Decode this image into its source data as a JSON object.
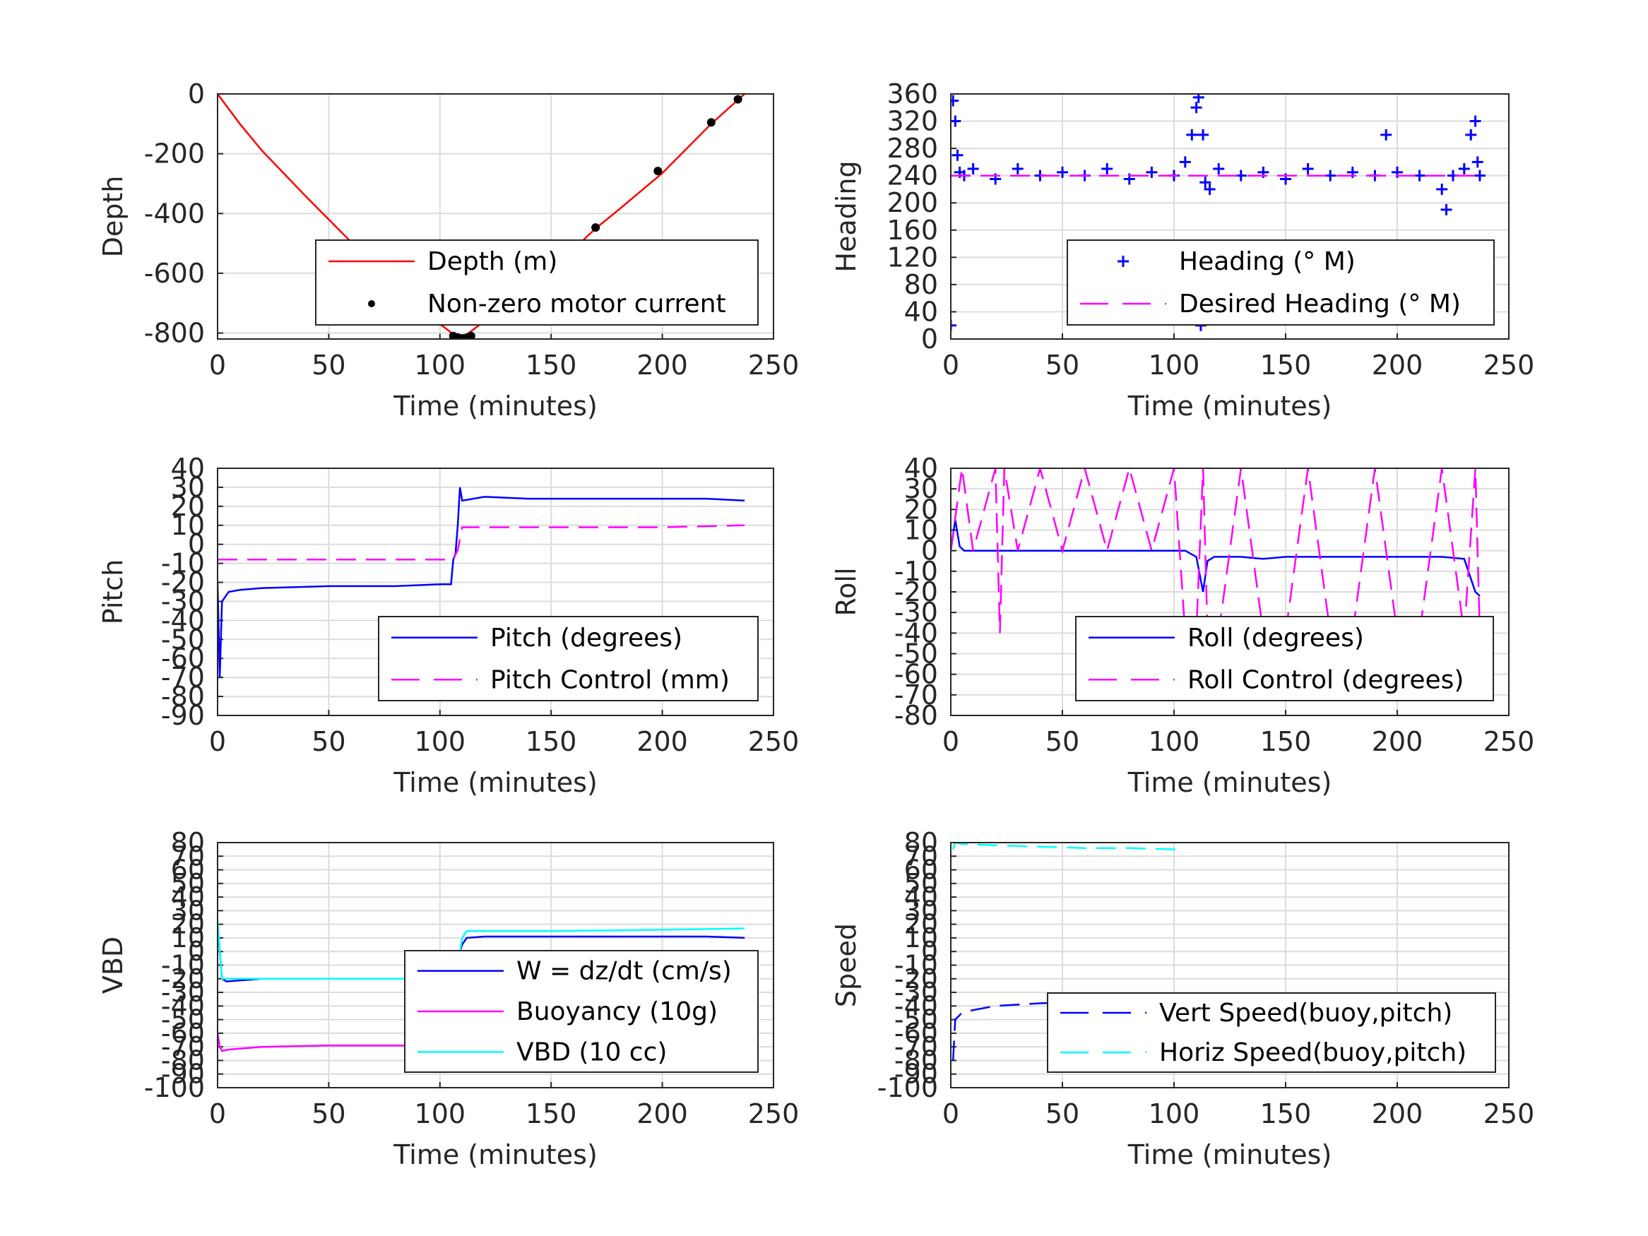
{
  "chart_data": [
    {
      "id": "depth",
      "type": "line",
      "xlabel": "Time (minutes)",
      "ylabel": "Depth",
      "xlim": [
        0,
        250
      ],
      "ylim": [
        -820,
        0
      ],
      "xticks": [
        "0",
        "50",
        "100",
        "150",
        "200",
        "250"
      ],
      "yticks": [
        "0",
        "-200",
        "-400",
        "-600",
        "-800"
      ],
      "ytick_values": [
        0,
        -200,
        -400,
        -600,
        -800
      ],
      "grid": true,
      "legend_position": "bottom-right",
      "series": [
        {
          "name": "Depth (m)",
          "style": "line",
          "color": "#ff0000",
          "x": [
            0,
            10,
            20,
            40,
            60,
            80,
            100,
            108,
            112,
            120,
            140,
            160,
            170,
            180,
            200,
            222,
            234,
            237
          ],
          "y": [
            0,
            -100,
            -190,
            -345,
            -495,
            -640,
            -770,
            -815,
            -805,
            -760,
            -640,
            -520,
            -450,
            -390,
            -265,
            -100,
            -20,
            0
          ]
        },
        {
          "name": "Non-zero motor current",
          "style": "points",
          "color": "#000000",
          "x": [
            106,
            108,
            109,
            110,
            111,
            112,
            113,
            114,
            170,
            198,
            222,
            234
          ],
          "y": [
            -810,
            -815,
            -818,
            -818,
            -818,
            -816,
            -814,
            -810,
            -447,
            -258,
            -95,
            -18
          ]
        }
      ]
    },
    {
      "id": "heading",
      "type": "scatter",
      "xlabel": "Time (minutes)",
      "ylabel": "Heading",
      "xlim": [
        0,
        250
      ],
      "ylim": [
        0,
        360
      ],
      "xticks": [
        "0",
        "50",
        "100",
        "150",
        "200",
        "250"
      ],
      "yticks": [
        "360",
        "320",
        "280",
        "240",
        "200",
        "160",
        "120",
        "80",
        "40",
        "0"
      ],
      "ytick_values": [
        360,
        320,
        280,
        240,
        200,
        160,
        120,
        80,
        40,
        0
      ],
      "grid": true,
      "legend_position": "bottom-right",
      "series": [
        {
          "name": "Heading (° M)",
          "style": "plus",
          "color": "#0000ff",
          "x": [
            0,
            1,
            2,
            3,
            4,
            6,
            10,
            20,
            30,
            40,
            50,
            60,
            70,
            80,
            90,
            100,
            105,
            108,
            110,
            111,
            112,
            113,
            114,
            116,
            120,
            130,
            140,
            150,
            160,
            170,
            180,
            190,
            195,
            200,
            210,
            220,
            222,
            225,
            230,
            233,
            235,
            236,
            237
          ],
          "y": [
            20,
            350,
            320,
            270,
            245,
            240,
            250,
            235,
            250,
            240,
            245,
            240,
            250,
            235,
            245,
            240,
            260,
            300,
            340,
            355,
            20,
            300,
            230,
            220,
            250,
            240,
            245,
            235,
            250,
            240,
            245,
            240,
            300,
            245,
            240,
            220,
            190,
            240,
            250,
            300,
            320,
            260,
            240
          ]
        },
        {
          "name": "Desired Heading (° M)",
          "style": "dash",
          "color": "#ff00ff",
          "x": [
            0,
            237
          ],
          "y": [
            240,
            240
          ]
        }
      ]
    },
    {
      "id": "pitch",
      "type": "line",
      "xlabel": "Time (minutes)",
      "ylabel": "Pitch",
      "xlim": [
        0,
        250
      ],
      "ylim": [
        -90,
        40
      ],
      "xticks": [
        "0",
        "50",
        "100",
        "150",
        "200",
        "250"
      ],
      "yticks": [
        "40",
        "30",
        "20",
        "10",
        "0",
        "-10",
        "-20",
        "-30",
        "-40",
        "-50",
        "-60",
        "-70",
        "-80",
        "-90"
      ],
      "ytick_values": [
        40,
        30,
        20,
        10,
        0,
        -10,
        -20,
        -30,
        -40,
        -50,
        -60,
        -70,
        -80,
        -90
      ],
      "grid": true,
      "legend_position": "bottom-right",
      "series": [
        {
          "name": "Pitch (degrees)",
          "style": "line",
          "color": "#0000ff",
          "x": [
            0,
            1,
            2,
            5,
            10,
            20,
            50,
            80,
            100,
            105,
            106,
            107,
            108,
            109,
            110,
            120,
            140,
            160,
            180,
            200,
            220,
            237
          ],
          "y": [
            -20,
            -70,
            -30,
            -25,
            -24,
            -23,
            -22,
            -22,
            -21,
            -21,
            -8,
            -5,
            10,
            30,
            23,
            25,
            24,
            24,
            24,
            24,
            24,
            23
          ]
        },
        {
          "name": "Pitch Control (mm)",
          "style": "dash",
          "color": "#ff00ff",
          "x": [
            0,
            100,
            106,
            108,
            110,
            150,
            200,
            237
          ],
          "y": [
            -8,
            -8,
            -8,
            -3,
            9,
            9,
            9,
            10
          ]
        }
      ]
    },
    {
      "id": "roll",
      "type": "line",
      "xlabel": "Time (minutes)",
      "ylabel": "Roll",
      "xlim": [
        0,
        250
      ],
      "ylim": [
        -80,
        40
      ],
      "xticks": [
        "0",
        "50",
        "100",
        "150",
        "200",
        "250"
      ],
      "yticks": [
        "40",
        "30",
        "20",
        "10",
        "0",
        "-10",
        "-20",
        "-30",
        "-40",
        "-50",
        "-60",
        "-70",
        "-80"
      ],
      "ytick_values": [
        40,
        30,
        20,
        10,
        0,
        -10,
        -20,
        -30,
        -40,
        -50,
        -60,
        -70,
        -80
      ],
      "grid": true,
      "legend_position": "bottom-right",
      "series": [
        {
          "name": "Roll (degrees)",
          "style": "line",
          "color": "#0000ff",
          "x": [
            0,
            2,
            4,
            6,
            10,
            20,
            40,
            60,
            80,
            100,
            105,
            110,
            113,
            115,
            118,
            120,
            130,
            140,
            150,
            160,
            180,
            200,
            220,
            230,
            235,
            237
          ],
          "y": [
            0,
            15,
            2,
            0,
            0,
            0,
            0,
            0,
            0,
            0,
            0,
            -3,
            -20,
            -5,
            -3,
            -3,
            -3,
            -4,
            -3,
            -3,
            -3,
            -3,
            -3,
            -4,
            -20,
            -22
          ]
        },
        {
          "name": "Roll Control (degrees)",
          "style": "dash",
          "color": "#ff00ff",
          "x": [
            0,
            5,
            10,
            20,
            22,
            24,
            30,
            40,
            50,
            60,
            70,
            80,
            90,
            100,
            105,
            110,
            113,
            115,
            120,
            130,
            140,
            150,
            160,
            170,
            180,
            190,
            200,
            210,
            220,
            230,
            235,
            237
          ],
          "y": [
            0,
            40,
            0,
            40,
            -40,
            40,
            0,
            40,
            0,
            40,
            0,
            40,
            0,
            40,
            -40,
            -40,
            40,
            -40,
            -40,
            40,
            -40,
            -40,
            40,
            -40,
            -40,
            40,
            -40,
            -40,
            40,
            -40,
            40,
            -40
          ]
        }
      ]
    },
    {
      "id": "vbd",
      "type": "line",
      "xlabel": "Time (minutes)",
      "ylabel": "VBD",
      "xlim": [
        0,
        250
      ],
      "ylim": [
        -100,
        80
      ],
      "xticks": [
        "0",
        "50",
        "100",
        "150",
        "200",
        "250"
      ],
      "yticks": [
        "80",
        "70",
        "60",
        "50",
        "40",
        "30",
        "20",
        "10",
        "0",
        "-10",
        "-20",
        "-30",
        "-40",
        "-50",
        "-60",
        "-70",
        "-80",
        "-90",
        "-100"
      ],
      "ytick_values": [
        80,
        70,
        60,
        50,
        40,
        30,
        20,
        10,
        0,
        -10,
        -20,
        -30,
        -40,
        -50,
        -60,
        -70,
        -80,
        -90,
        -100
      ],
      "grid": true,
      "legend_position": "bottom-right",
      "series": [
        {
          "name": "W = dz/dt (cm/s)",
          "style": "line",
          "color": "#0000ff",
          "x": [
            0,
            2,
            4,
            20,
            50,
            80,
            100,
            105,
            108,
            110,
            112,
            120,
            150,
            180,
            200,
            220,
            237
          ],
          "y": [
            20,
            -20,
            -22,
            -20,
            -20,
            -20,
            -20,
            -17,
            -5,
            5,
            10,
            11,
            11,
            11,
            11,
            11,
            10
          ]
        },
        {
          "name": "Buoyancy (10g)",
          "style": "line",
          "color": "#ff00ff",
          "x": [
            0,
            1,
            2,
            5,
            20,
            50,
            80,
            105
          ],
          "y": [
            -60,
            -70,
            -73,
            -72,
            -70,
            -69,
            -69,
            -69
          ]
        },
        {
          "name": "VBD (10 cc)",
          "style": "line",
          "color": "#00ffff",
          "x": [
            0,
            2,
            4,
            20,
            50,
            80,
            100,
            105,
            108,
            110,
            112,
            150,
            200,
            237
          ],
          "y": [
            22,
            -20,
            -20,
            -20,
            -20,
            -20,
            -20,
            -20,
            -10,
            10,
            15,
            15,
            16,
            17
          ]
        }
      ]
    },
    {
      "id": "speed",
      "type": "line",
      "xlabel": "Time (minutes)",
      "ylabel": "Speed",
      "xlim": [
        0,
        250
      ],
      "ylim": [
        -100,
        80
      ],
      "xticks": [
        "0",
        "50",
        "100",
        "150",
        "200",
        "250"
      ],
      "yticks": [
        "80",
        "70",
        "60",
        "50",
        "40",
        "30",
        "20",
        "10",
        "0",
        "-10",
        "-20",
        "-30",
        "-40",
        "-50",
        "-60",
        "-70",
        "-80",
        "-90",
        "-100"
      ],
      "ytick_values": [
        80,
        70,
        60,
        50,
        40,
        30,
        20,
        10,
        0,
        -10,
        -20,
        -30,
        -40,
        -50,
        -60,
        -70,
        -80,
        -90,
        -100
      ],
      "grid": true,
      "legend_position": "bottom-right",
      "series": [
        {
          "name": "Vert Speed(buoy,pitch)",
          "style": "dash",
          "color": "#0000ff",
          "x": [
            1,
            2,
            5,
            10,
            20,
            40,
            60,
            80,
            100,
            105
          ],
          "y": [
            -80,
            -50,
            -45,
            -43,
            -40,
            -38,
            -37,
            -37,
            -36,
            -36
          ]
        },
        {
          "name": "Horiz Speed(buoy,pitch)",
          "style": "dash",
          "color": "#00ffff",
          "x": [
            1,
            2,
            5,
            20,
            40,
            60,
            80,
            100,
            105
          ],
          "y": [
            75,
            80,
            79,
            78,
            77,
            76,
            76,
            75,
            75
          ]
        }
      ]
    }
  ]
}
